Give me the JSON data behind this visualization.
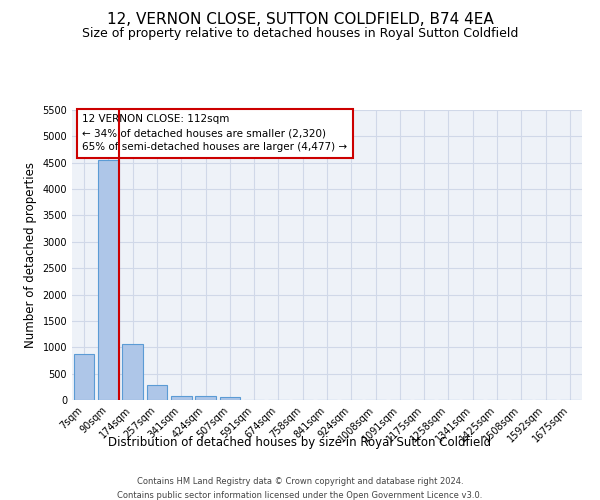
{
  "title": "12, VERNON CLOSE, SUTTON COLDFIELD, B74 4EA",
  "subtitle": "Size of property relative to detached houses in Royal Sutton Coldfield",
  "xlabel": "Distribution of detached houses by size in Royal Sutton Coldfield",
  "ylabel": "Number of detached properties",
  "footer_line1": "Contains HM Land Registry data © Crown copyright and database right 2024.",
  "footer_line2": "Contains public sector information licensed under the Open Government Licence v3.0.",
  "categories": [
    "7sqm",
    "90sqm",
    "174sqm",
    "257sqm",
    "341sqm",
    "424sqm",
    "507sqm",
    "591sqm",
    "674sqm",
    "758sqm",
    "841sqm",
    "924sqm",
    "1008sqm",
    "1091sqm",
    "1175sqm",
    "1258sqm",
    "1341sqm",
    "1425sqm",
    "1508sqm",
    "1592sqm",
    "1675sqm"
  ],
  "values": [
    880,
    4560,
    1060,
    290,
    85,
    75,
    55,
    0,
    0,
    0,
    0,
    0,
    0,
    0,
    0,
    0,
    0,
    0,
    0,
    0,
    0
  ],
  "bar_color": "#aec6e8",
  "bar_edge_color": "#5b9bd5",
  "grid_color": "#d0d8e8",
  "background_color": "#eef2f8",
  "property_line_x": 1.42,
  "property_line_color": "#cc0000",
  "annotation_box_line1": "12 VERNON CLOSE: 112sqm",
  "annotation_box_line2": "← 34% of detached houses are smaller (2,320)",
  "annotation_box_line3": "65% of semi-detached houses are larger (4,477) →",
  "annotation_box_color": "#cc0000",
  "ylim": [
    0,
    5500
  ],
  "yticks": [
    0,
    500,
    1000,
    1500,
    2000,
    2500,
    3000,
    3500,
    4000,
    4500,
    5000,
    5500
  ],
  "title_fontsize": 11,
  "subtitle_fontsize": 9,
  "xlabel_fontsize": 8.5,
  "ylabel_fontsize": 8.5,
  "tick_fontsize": 7,
  "annotation_fontsize": 7.5,
  "footer_fontsize": 6
}
